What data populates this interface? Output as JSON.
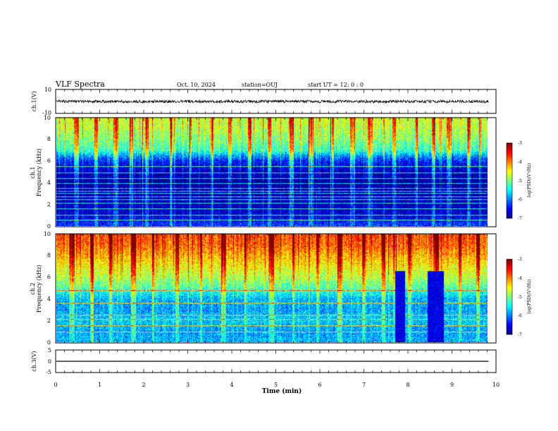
{
  "header": {
    "title": "VLF Spectra",
    "date": "Oct. 10, 2024",
    "station": "station=OUJ",
    "start_ut": "start  UT =   12: 0  : 0"
  },
  "chart_data": [
    {
      "type": "line",
      "panel": "ch1-waveform",
      "ylabel": "ch.1(V)",
      "ylim": [
        -10,
        10
      ],
      "yticks": [
        "10",
        "-10"
      ],
      "x_range_min": [
        0,
        9.83
      ],
      "trace_level": 0,
      "trace_amplitude": 1.2,
      "color": "#000000"
    },
    {
      "type": "heatmap",
      "panel": "ch1-spectrogram",
      "ylabel": "ch.1\nFrequency  (kHz)",
      "ylabel_lines": [
        "ch.1",
        "Frequency  (kHz)"
      ],
      "ylim": [
        0,
        10
      ],
      "yticks": [
        "0",
        "2",
        "4",
        "6",
        "8",
        "10"
      ],
      "x_range_min": [
        0,
        9.83
      ],
      "colorbar": {
        "label": "log(PSD)(V²/Hz)",
        "range": [
          -7,
          -3
        ],
        "ticks": [
          "-3",
          "-4",
          "-5",
          "-6",
          "-7"
        ]
      },
      "profile_log_psd": [
        {
          "f": 0.0,
          "v": -6.3
        },
        {
          "f": 0.5,
          "v": -6.5
        },
        {
          "f": 1.0,
          "v": -6.7
        },
        {
          "f": 2.0,
          "v": -6.8
        },
        {
          "f": 3.0,
          "v": -6.9
        },
        {
          "f": 4.0,
          "v": -7.0
        },
        {
          "f": 5.0,
          "v": -6.8
        },
        {
          "f": 6.0,
          "v": -6.4
        },
        {
          "f": 6.5,
          "v": -5.9
        },
        {
          "f": 7.0,
          "v": -5.3
        },
        {
          "f": 8.0,
          "v": -5.0
        },
        {
          "f": 9.0,
          "v": -4.8
        },
        {
          "f": 10.0,
          "v": -4.7
        }
      ],
      "horizontal_lines_khz": [
        0.5,
        1.0,
        1.6,
        2.1,
        2.4,
        2.7,
        3.0,
        3.2,
        3.45,
        3.9,
        4.4,
        4.9,
        5.5
      ],
      "bursts_min": [
        0.45,
        0.9,
        1.35,
        1.7,
        2.05,
        2.6,
        3.05,
        3.55,
        3.95,
        4.4,
        4.85,
        5.35,
        5.8,
        6.3,
        6.75,
        7.15,
        7.7,
        8.2,
        8.6,
        8.95,
        9.4
      ]
    },
    {
      "type": "heatmap",
      "panel": "ch2-spectrogram",
      "ylabel": "ch.2\nFrequency  (kHz)",
      "ylabel_lines": [
        "ch.2",
        "Frequency  (kHz)"
      ],
      "ylim": [
        0,
        10
      ],
      "yticks": [
        "0",
        "2",
        "4",
        "6",
        "8",
        "10"
      ],
      "x_range_min": [
        0,
        9.83
      ],
      "colorbar": {
        "label": "log(PSD)(V²/Hz)",
        "range": [
          -7,
          -3
        ],
        "ticks": [
          "-3",
          "-4",
          "-5",
          "-6",
          "-7"
        ]
      },
      "profile_log_psd": [
        {
          "f": 0.0,
          "v": -5.8
        },
        {
          "f": 1.0,
          "v": -5.9
        },
        {
          "f": 2.0,
          "v": -5.7
        },
        {
          "f": 3.0,
          "v": -5.9
        },
        {
          "f": 4.0,
          "v": -5.8
        },
        {
          "f": 5.0,
          "v": -5.2
        },
        {
          "f": 6.0,
          "v": -4.8
        },
        {
          "f": 7.0,
          "v": -4.5
        },
        {
          "f": 8.0,
          "v": -4.2
        },
        {
          "f": 9.0,
          "v": -3.9
        },
        {
          "f": 10.0,
          "v": -3.8
        }
      ],
      "horizontal_lines_khz": [
        0.9,
        1.5,
        2.1,
        2.5,
        3.6,
        4.8
      ],
      "dark_intervals_min": [
        [
          7.72,
          7.95
        ],
        [
          8.45,
          8.82
        ]
      ],
      "bursts_min": [
        0.35,
        0.8,
        1.25,
        1.75,
        2.2,
        2.75,
        3.3,
        3.8,
        4.3,
        4.9,
        5.4,
        5.95,
        6.45,
        7.0,
        7.45,
        8.05,
        8.65,
        9.2,
        9.6
      ]
    },
    {
      "type": "line",
      "panel": "ch3-waveform",
      "ylabel": "ch.3(V)",
      "ylim": [
        -5,
        5
      ],
      "yticks": [
        "5",
        "0",
        "-5"
      ],
      "x_range_min": [
        0,
        9.83
      ],
      "trace_level": 0,
      "color": "#000000"
    }
  ],
  "xaxis": {
    "label": "Time  (min)",
    "range": [
      0,
      10
    ],
    "ticks": [
      "0",
      "1",
      "2",
      "3",
      "4",
      "5",
      "6",
      "7",
      "8",
      "9",
      "10"
    ]
  },
  "colors": {
    "axes": "#000000",
    "background": "#ffffff",
    "trace": "#000000"
  }
}
